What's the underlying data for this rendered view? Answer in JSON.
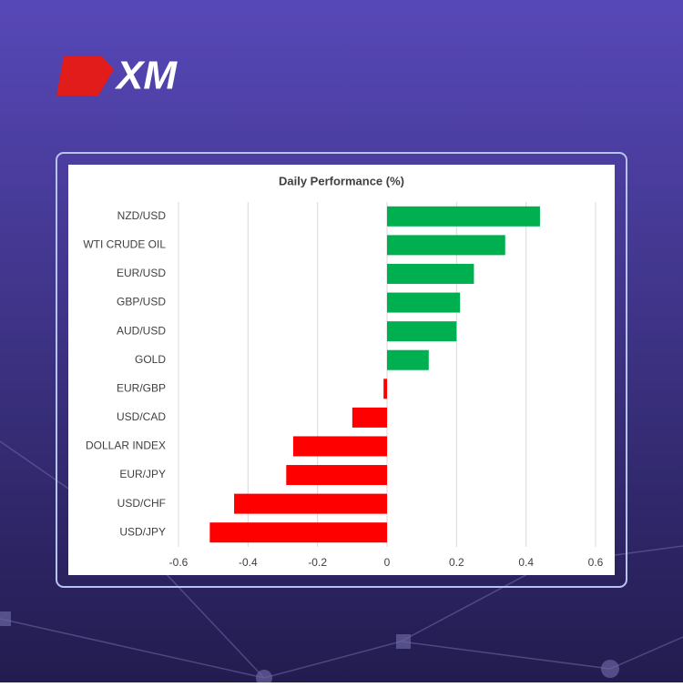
{
  "logo": "XM",
  "chart_data": {
    "type": "bar",
    "orientation": "horizontal",
    "title": "Daily Performance (%)",
    "categories": [
      "NZD/USD",
      "WTI CRUDE OIL",
      "EUR/USD",
      "GBP/USD",
      "AUD/USD",
      "GOLD",
      "EUR/GBP",
      "USD/CAD",
      "DOLLAR INDEX",
      "EUR/JPY",
      "USD/CHF",
      "USD/JPY"
    ],
    "values": [
      0.44,
      0.34,
      0.25,
      0.21,
      0.2,
      0.12,
      -0.01,
      -0.1,
      -0.27,
      -0.29,
      -0.44,
      -0.51
    ],
    "positive_color": "#00b050",
    "negative_color": "#ff0000",
    "xlim": [
      -0.6,
      0.6
    ],
    "xticks": [
      -0.6,
      -0.4,
      -0.2,
      0,
      0.2,
      0.4,
      0.6
    ],
    "grid": true
  }
}
